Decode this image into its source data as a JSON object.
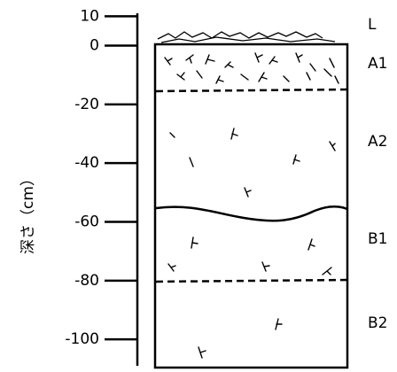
{
  "axis": {
    "label": "深さ（cm）",
    "ticks": [
      10,
      0,
      -20,
      -40,
      -60,
      -80,
      -100
    ],
    "ylim": [
      -109,
      11
    ]
  },
  "horizons": [
    "L",
    "A1",
    "A2",
    "B1",
    "B2"
  ]
}
